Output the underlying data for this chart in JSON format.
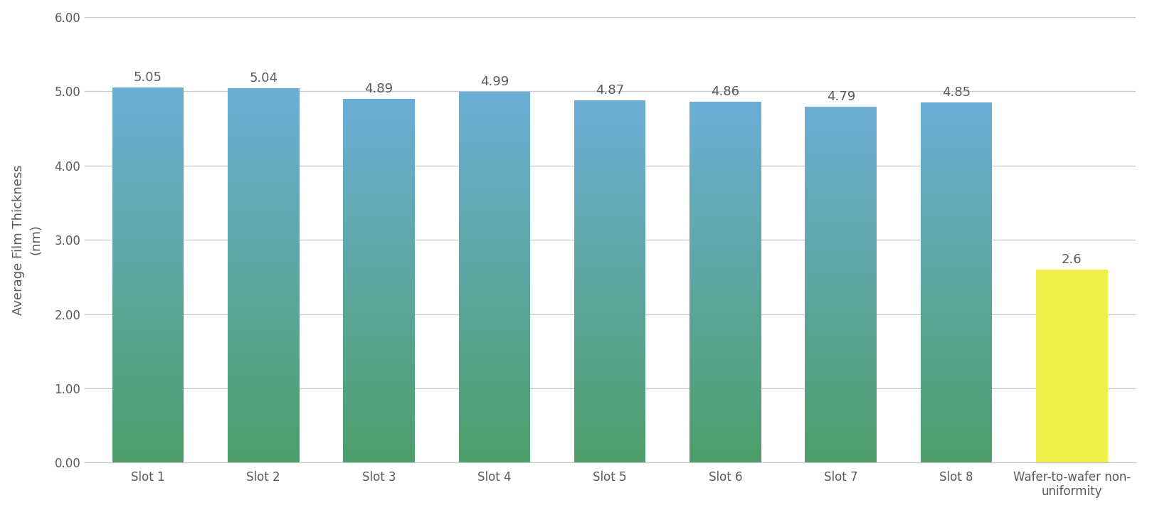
{
  "categories": [
    "Slot 1",
    "Slot 2",
    "Slot 3",
    "Slot 4",
    "Slot 5",
    "Slot 6",
    "Slot 7",
    "Slot 8",
    "Wafer-to-wafer non-\nuniformity"
  ],
  "values": [
    5.05,
    5.04,
    4.89,
    4.99,
    4.87,
    4.86,
    4.79,
    4.85,
    2.6
  ],
  "bar_labels": [
    "5.05",
    "5.04",
    "4.89",
    "4.99",
    "4.87",
    "4.86",
    "4.79",
    "4.85",
    "2.6"
  ],
  "gradient_top": "#6baed6",
  "gradient_bottom": "#4d9e6a",
  "yellow_color": "#eef04a",
  "ylabel": "Average Film Thickness\n(nm)",
  "ylim": [
    0,
    6.0
  ],
  "yticks": [
    0.0,
    1.0,
    2.0,
    3.0,
    4.0,
    5.0,
    6.0
  ],
  "grid_color": "#c8c8c8",
  "text_color": "#5a5a5a",
  "bg_color": "#ffffff",
  "bar_width": 0.62,
  "label_fontsize": 13,
  "tick_fontsize": 12,
  "ylabel_fontsize": 13
}
